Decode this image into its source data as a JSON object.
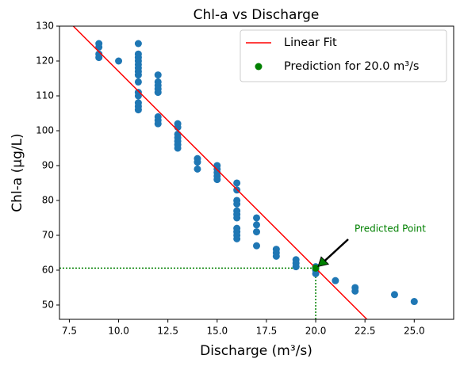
{
  "chart_data": {
    "type": "scatter",
    "title": "Chl-a vs Discharge",
    "xlabel": "Discharge (m³/s)",
    "ylabel": "Chl-a (μg/L)",
    "xlim": [
      7.0,
      27.0
    ],
    "ylim": [
      45.9,
      130
    ],
    "xticks": [
      7.5,
      {
        "value": 10,
        "label": "10.0"
      },
      12.5,
      {
        "value": 15,
        "label": "15.0"
      },
      17.5,
      {
        "value": 20,
        "label": "20.0"
      },
      22.5,
      {
        "value": 25,
        "label": "25.0"
      }
    ],
    "yticks": [
      50,
      60,
      70,
      80,
      90,
      100,
      110,
      120,
      130
    ],
    "legend": "upper right",
    "series": [
      {
        "name": "Linear Fit",
        "type": "line",
        "color": "#ff0000",
        "x": [
          7.7,
          22.6
        ],
        "values": [
          130,
          45.9
        ]
      },
      {
        "name": "Prediction for 20.0 m³/s",
        "type": "scatter",
        "color": "#008000",
        "x": [
          20
        ],
        "values": [
          60.6
        ]
      },
      {
        "type": "scatter",
        "color": "#1f77b4",
        "x": [
          9,
          9,
          9,
          9,
          10,
          11,
          11,
          11,
          11,
          11,
          11,
          11,
          11,
          11,
          11,
          11,
          11,
          11,
          11,
          12,
          12,
          12,
          12,
          12,
          12,
          12,
          12,
          13,
          13,
          13,
          13,
          13,
          13,
          13,
          14,
          14,
          14,
          15,
          15,
          15,
          15,
          15,
          16,
          16,
          16,
          16,
          16,
          16,
          16,
          16,
          16,
          16,
          16,
          17,
          17,
          17,
          17,
          18,
          18,
          18,
          19,
          19,
          19,
          20,
          20,
          20,
          21,
          22,
          22,
          24,
          25
        ],
        "values": [
          125,
          124,
          122,
          121,
          120,
          125,
          122,
          121,
          120,
          119,
          118,
          117,
          116,
          114,
          111,
          110,
          108,
          107,
          106,
          116,
          114,
          113,
          112,
          111,
          104,
          103,
          102,
          102,
          101,
          99,
          98,
          97,
          96,
          95,
          92,
          91,
          89,
          90,
          89,
          88,
          87,
          86,
          85,
          83,
          80,
          79,
          77,
          76,
          75,
          72,
          71,
          70,
          69,
          75,
          73,
          71,
          67,
          66,
          65,
          64,
          63,
          62,
          61,
          61,
          60,
          59,
          57,
          55,
          54,
          53,
          51
        ]
      }
    ],
    "annotation": {
      "text": "Predicted Point",
      "color": "#008000"
    }
  }
}
